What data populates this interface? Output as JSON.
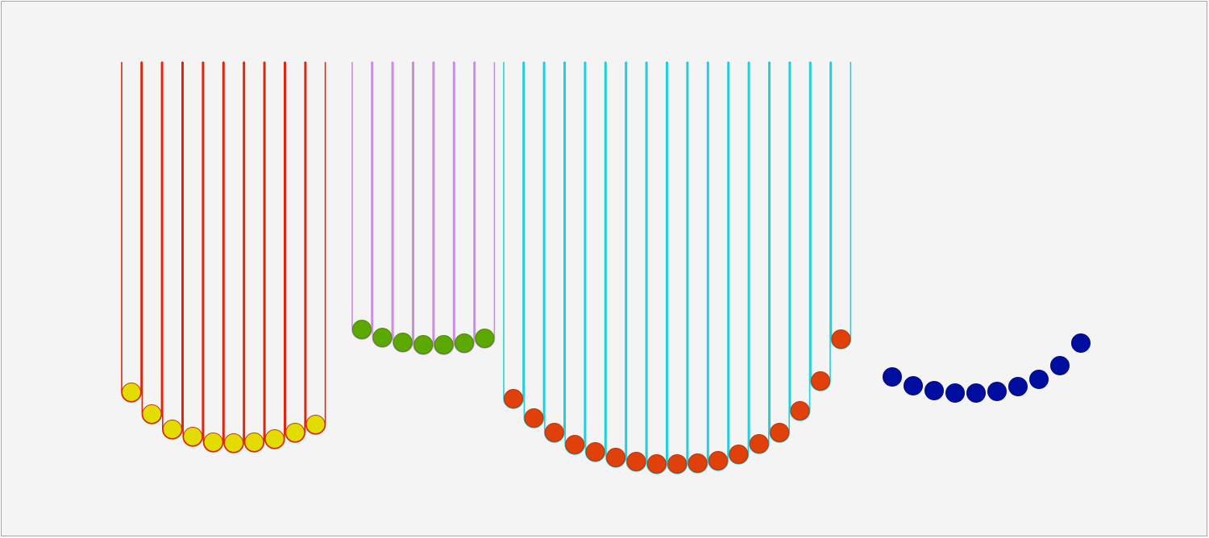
{
  "colors": {
    "background": "#f4f4f4",
    "border": "#a6a6a6"
  },
  "groups": [
    {
      "name": "red-strings-yellow-beads",
      "string_color": "#e0260f",
      "bead_color": "#e2dc00",
      "bead_outline": "#c8360f",
      "string_count": 10,
      "has_strings": true
    },
    {
      "name": "violet-strings-green-beads",
      "string_color": "#c98ee2",
      "bead_color": "#5aa800",
      "bead_outline": "#4a8a00",
      "string_count": 7,
      "has_strings": true
    },
    {
      "name": "cyan-strings-orange-beads",
      "string_color": "#1fd0dd",
      "bead_color": "#e0400a",
      "bead_outline": "#b8340a",
      "string_count": 17,
      "has_strings": true
    },
    {
      "name": "navy-beads",
      "string_color": "",
      "bead_color": "#000ea0",
      "bead_outline": "#00087a",
      "string_count": 0,
      "has_strings": false
    }
  ]
}
